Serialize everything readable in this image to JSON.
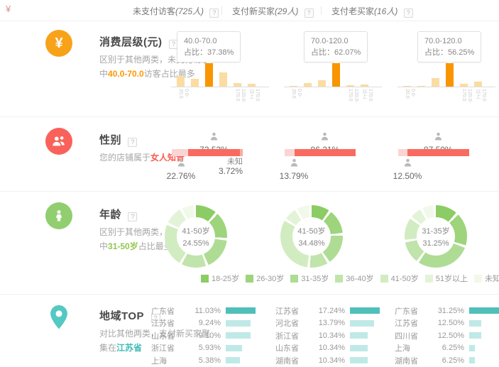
{
  "ui": {
    "help": "?",
    "corner_icon": "¥"
  },
  "header": {
    "columns": [
      {
        "name": "未支付访客",
        "count": "(725人)"
      },
      {
        "name": "支付新买家",
        "count": "(29人)"
      },
      {
        "name": "支付老买家",
        "count": "(16人)"
      }
    ]
  },
  "sections": {
    "consumption": {
      "title": "消费层级(元)",
      "desc_prefix": "区别于其他两类，未支付访客中",
      "desc_highlight": "40.0-70.0",
      "desc_suffix": "访客占比最多"
    },
    "gender": {
      "title": "性别",
      "desc_prefix": "您的店铺属于",
      "desc_highlight": "女人知音",
      "desc_suffix": ""
    },
    "age": {
      "title": "年龄",
      "desc_prefix": "区别于其他两类，支付老买家中",
      "desc_highlight": "31-50岁",
      "desc_suffix": "占比最多"
    },
    "region": {
      "title": "地域TOP",
      "desc_prefix": "对比其他两类，支付新买家聚集在",
      "desc_highlight": "江苏省",
      "desc_suffix": ""
    }
  },
  "colors": {
    "orange_icon": "#f8a21a",
    "bar_light": "#fbdca2",
    "bar_highlight": "#f99500",
    "red_icon": "#f9625a",
    "female_red": "#f96b60",
    "male_pink": "#fbd5d3",
    "unknown_pink": "#f9aba5",
    "person_gray": "#b9b9b9",
    "green_icon": "#90ce70",
    "age_palette": [
      "#8ccc64",
      "#9dd47c",
      "#aedc94",
      "#c0e4ab",
      "#d2ecc2",
      "#e3f3d8",
      "#f1f9ea"
    ],
    "teal_icon": "#54c8c2",
    "teal_dark": "#50bfb9",
    "teal_light": "#bfe9e7"
  },
  "chart_data": {
    "consumption": [
      {
        "type": "bar",
        "group": "未支付访客",
        "categories": [
          "0.0-20.0",
          "20.0-40.0",
          "40.0-70.0",
          "70.0-120.0",
          "120.0-170.0",
          "170.0以上"
        ],
        "values": [
          17.2,
          12.4,
          37.38,
          22.8,
          6.2,
          4.0
        ],
        "highlight_index": 2,
        "tooltip_title": "40.0-70.0",
        "tooltip_text": "占比：37.38%"
      },
      {
        "type": "bar",
        "group": "支付新买家",
        "categories": [
          "0.0-20.0",
          "20.0-40.0",
          "40.0-70.0",
          "70.0-120.0",
          "120.0-170.0",
          "170.0以上"
        ],
        "values": [
          1.4,
          10.3,
          17.2,
          62.07,
          4.0,
          5.0
        ],
        "highlight_index": 3,
        "tooltip_title": "70.0-120.0",
        "tooltip_text": "占比：62.07%"
      },
      {
        "type": "bar",
        "group": "支付老买家",
        "categories": [
          "0.0-20.0",
          "20.0-40.0",
          "40.0-70.0",
          "70.0-120.0",
          "120.0-170.0",
          "170.0以上"
        ],
        "values": [
          1.0,
          2.1,
          20.8,
          56.25,
          7.3,
          12.5
        ],
        "highlight_index": 3,
        "tooltip_title": "70.0-120.0",
        "tooltip_text": "占比：56.25%"
      }
    ],
    "gender": [
      {
        "type": "stacked-bar",
        "group": "未支付访客",
        "male": 22.76,
        "female": 73.52,
        "unknown": 3.72,
        "male_label": "22.76%",
        "female_label": "73.52%",
        "unknown_label": "3.72%",
        "unknown_name": "未知"
      },
      {
        "type": "stacked-bar",
        "group": "支付新买家",
        "male": 13.79,
        "female": 86.21,
        "unknown": 0,
        "male_label": "13.79%",
        "female_label": "86.21%"
      },
      {
        "type": "stacked-bar",
        "group": "支付老买家",
        "male": 12.5,
        "female": 87.5,
        "unknown": 0,
        "male_label": "12.50%",
        "female_label": "87.50%"
      }
    ],
    "age_legend": [
      "18-25岁",
      "26-30岁",
      "31-35岁",
      "36-40岁",
      "41-50岁",
      "51岁以上",
      "未知"
    ],
    "age": [
      {
        "type": "donut",
        "group": "未支付访客",
        "center_label": "41-50岁",
        "center_value": "24.55%",
        "values": [
          12.0,
          15.0,
          18.0,
          14.0,
          24.55,
          10.0,
          6.45
        ]
      },
      {
        "type": "donut",
        "group": "支付新买家",
        "center_label": "41-50岁",
        "center_value": "34.48%",
        "values": [
          10.34,
          13.79,
          17.24,
          10.34,
          34.48,
          6.9,
          6.9
        ]
      },
      {
        "type": "donut",
        "group": "支付老买家",
        "center_label": "31-35岁",
        "center_value": "31.25%",
        "values": [
          12.5,
          18.75,
          31.25,
          12.5,
          12.5,
          6.25,
          6.25
        ]
      }
    ],
    "region": [
      {
        "type": "hbar",
        "group": "未支付访客",
        "rows": [
          {
            "name": "广东省",
            "value": "11.03%"
          },
          {
            "name": "江苏省",
            "value": "9.24%"
          },
          {
            "name": "山东省",
            "value": "9.10%"
          },
          {
            "name": "浙江省",
            "value": "5.93%"
          },
          {
            "name": "上海",
            "value": "5.38%"
          }
        ]
      },
      {
        "type": "hbar",
        "group": "支付新买家",
        "rows": [
          {
            "name": "江苏省",
            "value": "17.24%"
          },
          {
            "name": "河北省",
            "value": "13.79%"
          },
          {
            "name": "浙江省",
            "value": "10.34%"
          },
          {
            "name": "山东省",
            "value": "10.34%"
          },
          {
            "name": "湖南省",
            "value": "10.34%"
          }
        ]
      },
      {
        "type": "hbar",
        "group": "支付老买家",
        "rows": [
          {
            "name": "广东省",
            "value": "31.25%"
          },
          {
            "name": "江苏省",
            "value": "12.50%"
          },
          {
            "name": "四川省",
            "value": "12.50%"
          },
          {
            "name": "上海",
            "value": "6.25%"
          },
          {
            "name": "湖南省",
            "value": "6.25%"
          }
        ]
      }
    ]
  }
}
